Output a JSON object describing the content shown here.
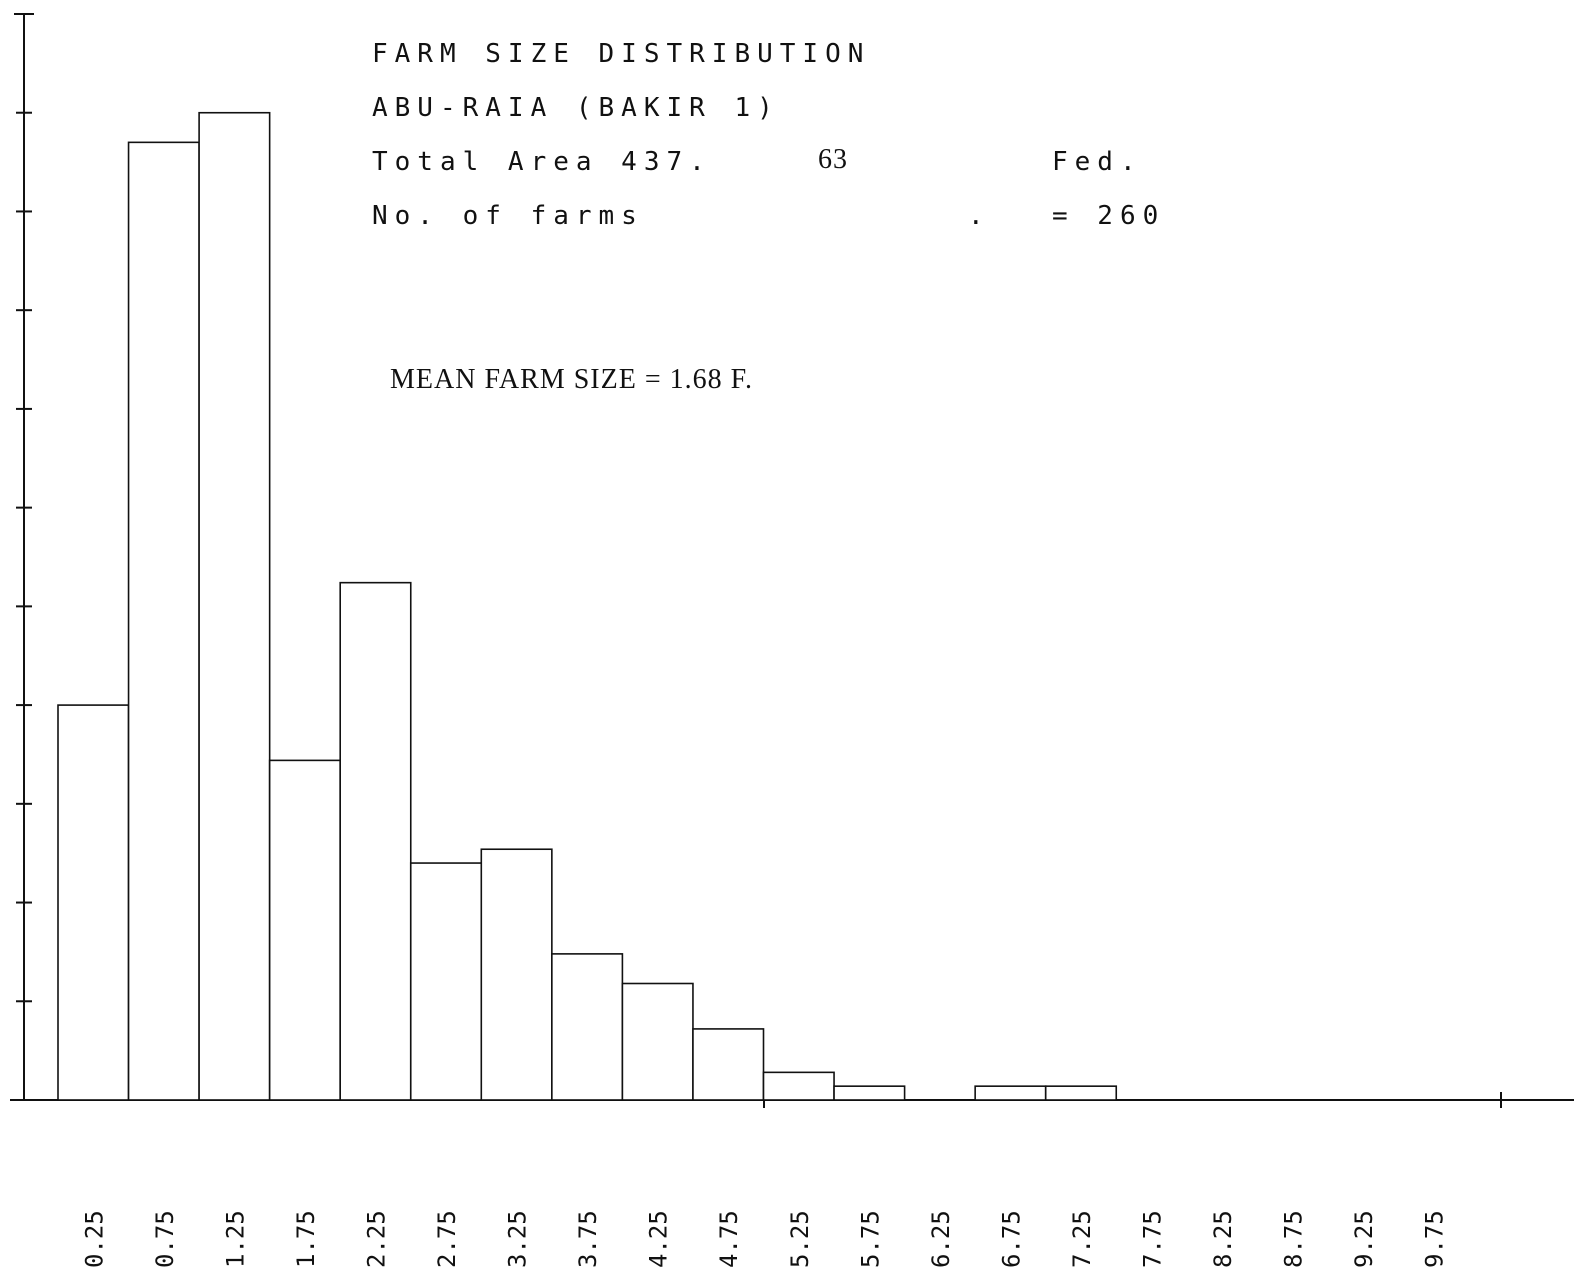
{
  "chart_data": {
    "type": "bar",
    "title": "FARM SIZE DISTRIBUTION",
    "subtitle": "ABU-RAIA (BAKIR 1)",
    "annotations": {
      "total_area_label": "Total Area 437.",
      "total_area_fraction": "63",
      "total_area_unit": "Fed.",
      "farms_label": "No. of farms",
      "farms_dot": ".",
      "farms_value": "= 260",
      "mean": "MEAN FARM SIZE = 1.68 F."
    },
    "xlabel": "",
    "ylabel": "",
    "categories": [
      "0.25",
      "0.75",
      "1.25",
      "1.75",
      "2.25",
      "2.75",
      "3.25",
      "3.75",
      "4.25",
      "4.75",
      "5.25",
      "5.75",
      "6.25",
      "6.75",
      "7.25",
      "7.75",
      "8.25",
      "8.75",
      "9.25",
      "9.75"
    ],
    "values": [
      20,
      48.5,
      50,
      17.2,
      26.2,
      12,
      12.7,
      7.4,
      5.9,
      3.6,
      1.4,
      0.7,
      0,
      0.7,
      0.7,
      0,
      0,
      0,
      0,
      0
    ],
    "ylim": [
      0,
      55
    ],
    "y_ticks": [
      0,
      5,
      10,
      15,
      20,
      25,
      30,
      35,
      40,
      45,
      50,
      55
    ],
    "y_tick_labels_shown": false,
    "grid": false,
    "legend": "none",
    "bar_fill": "#ffffff",
    "bar_stroke": "#111111"
  }
}
